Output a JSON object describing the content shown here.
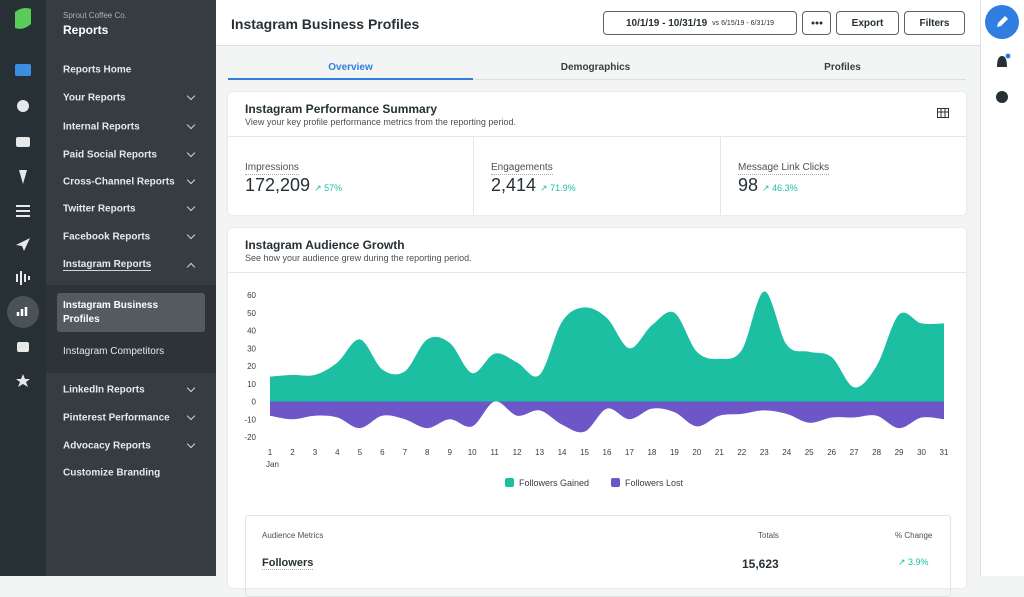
{
  "sidebar": {
    "company": "Sprout Coffee Co.",
    "title": "Reports",
    "items": [
      "Reports Home",
      "Your Reports",
      "Internal Reports",
      "Paid Social Reports",
      "Cross-Channel Reports",
      "Twitter Reports",
      "Facebook Reports",
      "Instagram Reports",
      "LinkedIn Reports",
      "Pinterest Performance",
      "Advocacy Reports",
      "Customize Branding"
    ],
    "subitems": [
      "Instagram Business Profiles",
      "Instagram Competitors"
    ]
  },
  "header": {
    "title": "Instagram Business Profiles",
    "date_range": "10/1/19 - 10/31/19",
    "compare": "vs 6/15/19 - 6/31/19",
    "export": "Export",
    "filters": "Filters"
  },
  "tabs": [
    "Overview",
    "Demographics",
    "Profiles"
  ],
  "summary": {
    "title": "Instagram Performance Summary",
    "subtitle": "View your key profile performance metrics from the reporting period.",
    "metrics": [
      {
        "label": "Impressions",
        "value": "172,209",
        "change": "↗ 57%"
      },
      {
        "label": "Engagements",
        "value": "2,414",
        "change": "↗ 71.9%"
      },
      {
        "label": "Message Link Clicks",
        "value": "98",
        "change": "↗ 46.3%"
      }
    ]
  },
  "growth": {
    "title": "Instagram Audience Growth",
    "subtitle": "See how your audience grew during the reporting period.",
    "chart": {
      "type": "area",
      "categories": [
        1,
        2,
        3,
        4,
        5,
        6,
        7,
        8,
        9,
        10,
        11,
        12,
        13,
        14,
        15,
        16,
        17,
        18,
        19,
        20,
        21,
        22,
        23,
        24,
        25,
        26,
        27,
        28,
        29,
        30,
        31
      ],
      "x_sublabel": "Jan",
      "series": [
        {
          "name": "Followers Gained",
          "color": "#1dbfa3",
          "values": [
            14,
            15,
            15,
            22,
            35,
            18,
            17,
            35,
            33,
            16,
            27,
            22,
            15,
            45,
            53,
            47,
            30,
            43,
            50,
            28,
            24,
            29,
            62,
            32,
            28,
            25,
            8,
            20,
            49,
            44,
            44
          ]
        },
        {
          "name": "Followers Lost",
          "color": "#6c56c8",
          "values": [
            -8,
            -10,
            -8,
            -9,
            -15,
            -8,
            -10,
            -15,
            -10,
            -14,
            0,
            -8,
            -5,
            -13,
            -17,
            -4,
            -10,
            -4,
            -6,
            -14,
            -8,
            -7,
            -5,
            -7,
            -12,
            -9,
            -9,
            -8,
            -15,
            -9,
            -10
          ]
        }
      ],
      "ylim": [
        -20,
        60
      ],
      "yticks": [
        -20,
        -10,
        0,
        10,
        20,
        30,
        40,
        50,
        60
      ]
    }
  },
  "audience_table": {
    "headers": [
      "Audience Metrics",
      "Totals",
      "% Change"
    ],
    "rows": [
      [
        "Followers",
        "15,623",
        "↗ 3.9%"
      ]
    ]
  }
}
